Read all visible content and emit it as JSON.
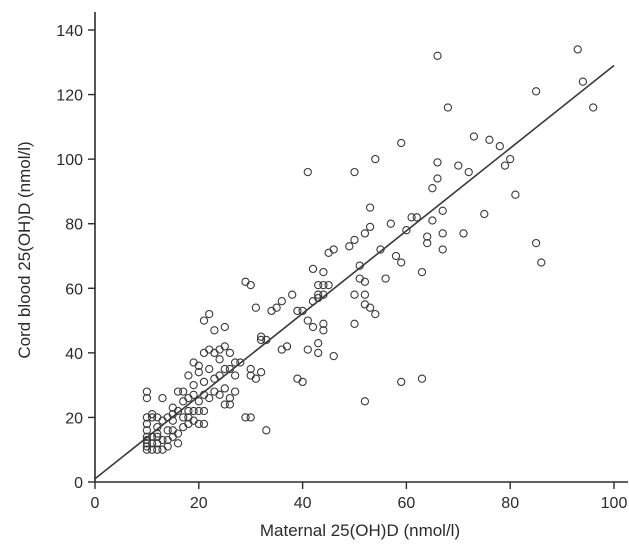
{
  "chart_data": {
    "type": "scatter",
    "title": "",
    "xlabel": "Maternal 25(OH)D (nmol/l)",
    "ylabel": "Cord blood 25(OH)D (nmol/l)",
    "xlim": [
      0,
      100
    ],
    "ylim": [
      0,
      140
    ],
    "x_ticks": [
      0,
      20,
      40,
      60,
      80,
      100
    ],
    "y_ticks": [
      0,
      20,
      40,
      60,
      80,
      100,
      120,
      140
    ],
    "grid": false,
    "legend": "none",
    "marker": "open-circle",
    "colors": {
      "marker": "#3a3a3a",
      "line": "#3a3a3a",
      "axis": "#2b2b2b"
    },
    "fit_line": {
      "from": [
        0,
        1
      ],
      "to": [
        100,
        129
      ]
    },
    "points": [
      [
        10,
        10
      ],
      [
        10,
        11
      ],
      [
        10,
        12
      ],
      [
        10,
        13
      ],
      [
        10,
        14
      ],
      [
        10,
        16
      ],
      [
        10,
        18
      ],
      [
        10,
        20
      ],
      [
        10,
        26
      ],
      [
        10,
        28
      ],
      [
        11,
        10
      ],
      [
        11,
        12
      ],
      [
        11,
        14
      ],
      [
        11,
        20
      ],
      [
        11,
        21
      ],
      [
        12,
        10
      ],
      [
        12,
        12
      ],
      [
        12,
        14
      ],
      [
        12,
        15
      ],
      [
        12,
        17
      ],
      [
        12,
        20
      ],
      [
        13,
        10
      ],
      [
        13,
        13
      ],
      [
        13,
        19
      ],
      [
        13,
        26
      ],
      [
        14,
        11
      ],
      [
        14,
        13
      ],
      [
        14,
        16
      ],
      [
        14,
        20
      ],
      [
        15,
        14
      ],
      [
        15,
        16
      ],
      [
        15,
        19
      ],
      [
        15,
        21
      ],
      [
        15,
        23
      ],
      [
        16,
        12
      ],
      [
        16,
        15
      ],
      [
        16,
        22
      ],
      [
        16,
        28
      ],
      [
        17,
        17
      ],
      [
        17,
        20
      ],
      [
        17,
        25
      ],
      [
        17,
        28
      ],
      [
        18,
        18
      ],
      [
        18,
        20
      ],
      [
        18,
        22
      ],
      [
        18,
        26
      ],
      [
        18,
        33
      ],
      [
        19,
        19
      ],
      [
        19,
        22
      ],
      [
        19,
        27
      ],
      [
        19,
        30
      ],
      [
        19,
        37
      ],
      [
        20,
        18
      ],
      [
        20,
        22
      ],
      [
        20,
        25
      ],
      [
        20,
        34
      ],
      [
        20,
        36
      ],
      [
        21,
        18
      ],
      [
        21,
        22
      ],
      [
        21,
        27
      ],
      [
        21,
        31
      ],
      [
        21,
        40
      ],
      [
        21,
        50
      ],
      [
        22,
        26
      ],
      [
        22,
        35
      ],
      [
        22,
        41
      ],
      [
        22,
        52
      ],
      [
        23,
        28
      ],
      [
        23,
        32
      ],
      [
        23,
        40
      ],
      [
        23,
        47
      ],
      [
        24,
        27
      ],
      [
        24,
        33
      ],
      [
        24,
        38
      ],
      [
        24,
        41
      ],
      [
        25,
        24
      ],
      [
        25,
        29
      ],
      [
        25,
        35
      ],
      [
        25,
        42
      ],
      [
        25,
        48
      ],
      [
        26,
        24
      ],
      [
        26,
        26
      ],
      [
        26,
        35
      ],
      [
        26,
        40
      ],
      [
        27,
        28
      ],
      [
        27,
        33
      ],
      [
        27,
        37
      ],
      [
        28,
        37
      ],
      [
        29,
        20
      ],
      [
        29,
        62
      ],
      [
        30,
        20
      ],
      [
        30,
        33
      ],
      [
        30,
        35
      ],
      [
        30,
        61
      ],
      [
        31,
        32
      ],
      [
        31,
        54
      ],
      [
        32,
        34
      ],
      [
        32,
        44
      ],
      [
        32,
        45
      ],
      [
        33,
        16
      ],
      [
        33,
        44
      ],
      [
        34,
        53
      ],
      [
        35,
        54
      ],
      [
        36,
        41
      ],
      [
        36,
        56
      ],
      [
        37,
        42
      ],
      [
        38,
        58
      ],
      [
        39,
        32
      ],
      [
        39,
        53
      ],
      [
        40,
        31
      ],
      [
        40,
        53
      ],
      [
        41,
        41
      ],
      [
        41,
        50
      ],
      [
        41,
        96
      ],
      [
        42,
        48
      ],
      [
        42,
        56
      ],
      [
        42,
        66
      ],
      [
        43,
        40
      ],
      [
        43,
        43
      ],
      [
        43,
        57
      ],
      [
        43,
        58
      ],
      [
        43,
        61
      ],
      [
        44,
        47
      ],
      [
        44,
        49
      ],
      [
        44,
        58
      ],
      [
        44,
        61
      ],
      [
        44,
        65
      ],
      [
        45,
        61
      ],
      [
        45,
        71
      ],
      [
        46,
        39
      ],
      [
        46,
        72
      ],
      [
        49,
        73
      ],
      [
        50,
        49
      ],
      [
        50,
        58
      ],
      [
        50,
        75
      ],
      [
        50,
        96
      ],
      [
        51,
        63
      ],
      [
        51,
        67
      ],
      [
        52,
        25
      ],
      [
        52,
        55
      ],
      [
        52,
        58
      ],
      [
        52,
        62
      ],
      [
        52,
        77
      ],
      [
        53,
        54
      ],
      [
        53,
        79
      ],
      [
        53,
        85
      ],
      [
        54,
        52
      ],
      [
        54,
        100
      ],
      [
        55,
        72
      ],
      [
        56,
        63
      ],
      [
        57,
        80
      ],
      [
        58,
        70
      ],
      [
        59,
        31
      ],
      [
        59,
        68
      ],
      [
        59,
        105
      ],
      [
        60,
        78
      ],
      [
        61,
        82
      ],
      [
        62,
        82
      ],
      [
        63,
        32
      ],
      [
        63,
        65
      ],
      [
        64,
        74
      ],
      [
        64,
        76
      ],
      [
        65,
        81
      ],
      [
        65,
        91
      ],
      [
        66,
        94
      ],
      [
        66,
        99
      ],
      [
        66,
        132
      ],
      [
        67,
        72
      ],
      [
        67,
        77
      ],
      [
        67,
        84
      ],
      [
        68,
        116
      ],
      [
        70,
        98
      ],
      [
        71,
        77
      ],
      [
        72,
        96
      ],
      [
        73,
        107
      ],
      [
        75,
        83
      ],
      [
        76,
        106
      ],
      [
        78,
        104
      ],
      [
        79,
        98
      ],
      [
        80,
        100
      ],
      [
        81,
        89
      ],
      [
        85,
        74
      ],
      [
        85,
        121
      ],
      [
        86,
        68
      ],
      [
        93,
        134
      ],
      [
        94,
        124
      ],
      [
        96,
        116
      ]
    ]
  }
}
